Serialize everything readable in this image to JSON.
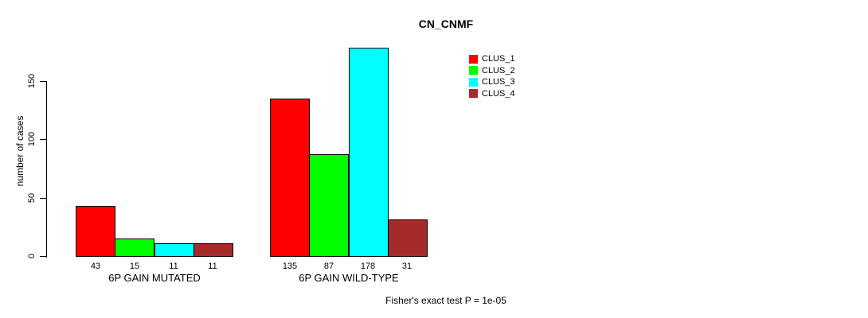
{
  "title": "CN_CNMF",
  "chart_data": {
    "type": "bar",
    "title": "CN_CNMF",
    "ylabel": "number of cases",
    "xlabel": "",
    "yticks": [
      0,
      50,
      100,
      150
    ],
    "ylim": [
      0,
      178
    ],
    "grid": false,
    "legend_position": "top-right",
    "categories": [
      "6P GAIN MUTATED",
      "6P GAIN WILD-TYPE"
    ],
    "series": [
      {
        "name": "CLUS_1",
        "color": "#FF0000",
        "values": [
          43,
          135
        ]
      },
      {
        "name": "CLUS_2",
        "color": "#00FF00",
        "values": [
          15,
          87
        ]
      },
      {
        "name": "CLUS_3",
        "color": "#00FFFF",
        "values": [
          11,
          178
        ]
      },
      {
        "name": "CLUS_4",
        "color": "#A52A2A",
        "values": [
          11,
          31
        ]
      }
    ],
    "bar_value_labels": [
      [
        43,
        15,
        11,
        11
      ],
      [
        135,
        87,
        178,
        31
      ]
    ],
    "footnote": "Fisher's exact test P = 1e-05"
  }
}
